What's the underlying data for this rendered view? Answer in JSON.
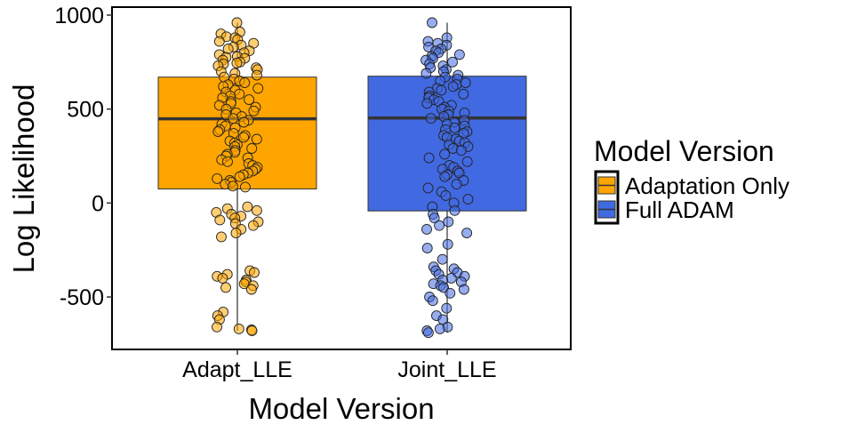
{
  "chart_data": {
    "type": "box",
    "title": "",
    "xlabel": "Model Version",
    "ylabel": "Log Likelihood",
    "ylim": [
      -780,
      1030
    ],
    "yticks": [
      1000,
      500,
      0,
      -500
    ],
    "ytick_labels": [
      "1000",
      "500",
      "0",
      "-500"
    ],
    "categories": [
      "Adapt_LLE",
      "Joint_LLE"
    ],
    "grid": false,
    "legend": {
      "title": "Model Version",
      "placement": "right",
      "entries": [
        {
          "label": "Adaptation Only",
          "color": "#FFA500"
        },
        {
          "label": "Full ADAM",
          "color": "#4169E1"
        }
      ]
    },
    "boxes": [
      {
        "category": "Adapt_LLE",
        "group": "Adaptation Only",
        "color": "#FFA500",
        "whisker_low": -680,
        "q1": 75,
        "median": 448,
        "q3": 670,
        "whisker_high": 960
      },
      {
        "category": "Joint_LLE",
        "group": "Full ADAM",
        "color": "#4169E1",
        "whisker_low": -690,
        "q1": -42,
        "median": 452,
        "q3": 675,
        "whisker_high": 960
      }
    ],
    "points": [
      {
        "category": "Adapt_LLE",
        "values": [
          960,
          910,
          900,
          885,
          880,
          870,
          860,
          850,
          840,
          830,
          820,
          810,
          800,
          790,
          780,
          775,
          770,
          760,
          750,
          745,
          740,
          730,
          720,
          710,
          700,
          690,
          680,
          670,
          660,
          650,
          640,
          630,
          620,
          610,
          600,
          590,
          580,
          570,
          560,
          550,
          540,
          530,
          520,
          510,
          500,
          490,
          480,
          470,
          460,
          450,
          440,
          430,
          420,
          410,
          400,
          390,
          380,
          370,
          360,
          350,
          340,
          330,
          320,
          310,
          300,
          290,
          280,
          270,
          260,
          250,
          240,
          230,
          220,
          210,
          200,
          190,
          180,
          170,
          160,
          150,
          140,
          130,
          120,
          110,
          100,
          90,
          85,
          -20,
          -30,
          -40,
          -50,
          -60,
          -70,
          -80,
          -90,
          -100,
          -110,
          -120,
          -140,
          -160,
          -180,
          -360,
          -370,
          -380,
          -390,
          -400,
          -410,
          -420,
          -430,
          -440,
          -450,
          -460,
          -580,
          -600,
          -620,
          -660,
          -670,
          -675,
          -680
        ]
      },
      {
        "category": "Joint_LLE",
        "values": [
          960,
          880,
          860,
          850,
          840,
          830,
          820,
          810,
          800,
          790,
          780,
          770,
          760,
          750,
          740,
          730,
          720,
          710,
          700,
          690,
          680,
          670,
          660,
          650,
          640,
          630,
          620,
          610,
          600,
          590,
          580,
          570,
          560,
          550,
          540,
          530,
          520,
          510,
          500,
          490,
          480,
          470,
          460,
          450,
          440,
          430,
          420,
          410,
          400,
          390,
          380,
          370,
          360,
          350,
          340,
          330,
          320,
          310,
          300,
          290,
          280,
          260,
          240,
          220,
          200,
          190,
          180,
          170,
          160,
          150,
          140,
          120,
          100,
          80,
          60,
          40,
          20,
          0,
          -20,
          -40,
          -60,
          -80,
          -100,
          -120,
          -140,
          -160,
          -220,
          -240,
          -300,
          -340,
          -350,
          -360,
          -370,
          -380,
          -390,
          -400,
          -410,
          -420,
          -430,
          -440,
          -450,
          -460,
          -480,
          -500,
          -520,
          -560,
          -600,
          -620,
          -660,
          -670,
          -680,
          -690
        ]
      }
    ]
  }
}
